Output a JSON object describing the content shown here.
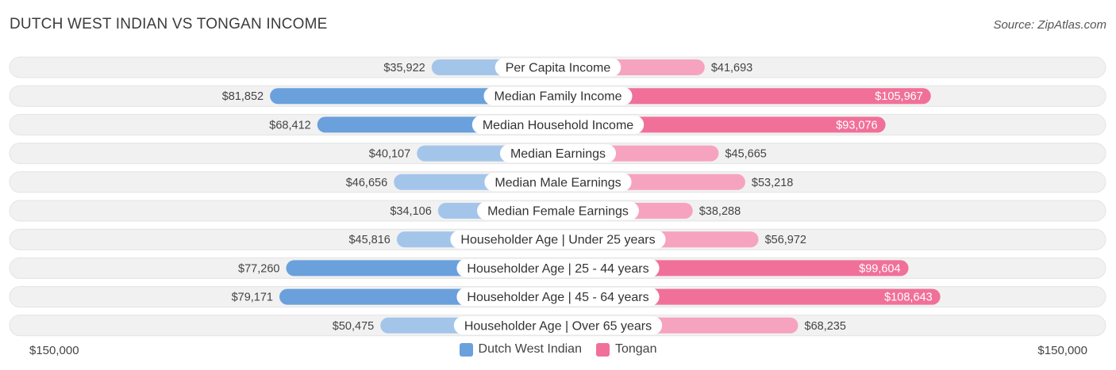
{
  "title": "DUTCH WEST INDIAN VS TONGAN INCOME",
  "source": "Source: ZipAtlas.com",
  "colors": {
    "left_strong": "#6aa0dc",
    "left_light": "#a4c5ea",
    "right_strong": "#f07099",
    "right_light": "#f6a3bf",
    "track": "#f1f1f1"
  },
  "axis": {
    "left_label": "$150,000",
    "right_label": "$150,000"
  },
  "legend": {
    "left": "Dutch West Indian",
    "right": "Tongan"
  },
  "chart_data": {
    "type": "bar",
    "orientation": "horizontal-diverging",
    "title": "DUTCH WEST INDIAN VS TONGAN INCOME",
    "categories": [
      "Per Capita Income",
      "Median Family Income",
      "Median Household Income",
      "Median Earnings",
      "Median Male Earnings",
      "Median Female Earnings",
      "Householder Age | Under 25 years",
      "Householder Age | 25 - 44 years",
      "Householder Age | 45 - 64 years",
      "Householder Age | Over 65 years"
    ],
    "series": [
      {
        "name": "Dutch West Indian",
        "values": [
          35922,
          81852,
          68412,
          40107,
          46656,
          34106,
          45816,
          77260,
          79171,
          50475
        ],
        "labels": [
          "$35,922",
          "$81,852",
          "$68,412",
          "$40,107",
          "$46,656",
          "$34,106",
          "$45,816",
          "$77,260",
          "$79,171",
          "$50,475"
        ]
      },
      {
        "name": "Tongan",
        "values": [
          41693,
          105967,
          93076,
          45665,
          53218,
          38288,
          56972,
          99604,
          108643,
          68235
        ],
        "labels": [
          "$41,693",
          "$105,967",
          "$93,076",
          "$45,665",
          "$53,218",
          "$38,288",
          "$56,972",
          "$99,604",
          "$108,643",
          "$68,235"
        ]
      }
    ],
    "xlim": [
      -150000,
      150000
    ],
    "strong_rows": [
      1,
      2,
      7,
      8
    ]
  }
}
